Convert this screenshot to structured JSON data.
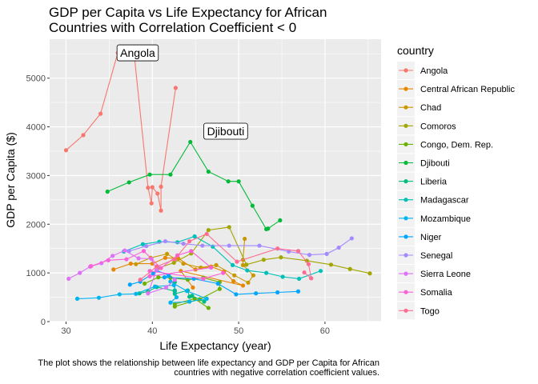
{
  "chart_data": {
    "type": "line",
    "title": [
      "GDP per Capita vs Life Expectancy for African",
      "Countries with Correlation Coefficient < 0"
    ],
    "xlabel": "Life Expectancy (year)",
    "ylabel": "GDP per Capita ($)",
    "caption": [
      "The plot shows the relationship between life expectancy and GDP per Capita for African",
      "countries with negative correlation coefficient values."
    ],
    "xlim": [
      28.1,
      66.5
    ],
    "ylim": [
      0,
      5800
    ],
    "xticks": [
      30,
      40,
      50,
      60
    ],
    "yticks": [
      0,
      1000,
      2000,
      3000,
      4000,
      5000
    ],
    "grid": true,
    "legend": {
      "title": "country",
      "position": "right"
    },
    "annotations": [
      {
        "text": "Angola",
        "x": 38.3,
        "y": 5520
      },
      {
        "text": "Djibouti",
        "x": 48.5,
        "y": 3910
      }
    ],
    "series": [
      {
        "name": "Angola",
        "color": "#F8766D",
        "x": [
          30.0,
          32.0,
          34.0,
          36.0,
          37.9,
          39.5,
          39.9,
          40.0,
          40.6,
          41.0,
          41.0,
          42.7
        ],
        "y": [
          3520,
          3830,
          4270,
          5520,
          5470,
          2750,
          2430,
          2760,
          2630,
          2280,
          2770,
          4800
        ]
      },
      {
        "name": "Central African Republic",
        "color": "#E58700",
        "x": [
          35.5,
          37.5,
          40.0,
          41.5,
          43.0,
          45.0,
          46.8,
          48.3,
          49.4,
          50.5,
          43.3,
          44.7
        ],
        "y": [
          1070,
          1190,
          1190,
          1310,
          1300,
          1070,
          1130,
          1030,
          830,
          740,
          1040,
          700
        ]
      },
      {
        "name": "Chad",
        "color": "#C99800",
        "x": [
          38.1,
          39.8,
          41.7,
          43.6,
          45.6,
          47.4,
          49.5,
          51.1,
          51.7,
          50.5,
          50.5,
          50.7
        ],
        "y": [
          1180,
          1310,
          1390,
          1190,
          1110,
          1160,
          950,
          800,
          950,
          1160,
          1270,
          1700
        ]
      },
      {
        "name": "Comoros",
        "color": "#A3A500",
        "x": [
          40.7,
          42.5,
          44.5,
          46.5,
          48.9,
          50.9,
          52.9,
          54.9,
          57.9,
          60.7,
          62.9,
          65.2
        ],
        "y": [
          1100,
          1210,
          1400,
          1880,
          1940,
          1170,
          1270,
          1320,
          1250,
          1170,
          1080,
          990
        ]
      },
      {
        "name": "Congo, Dem. Rep.",
        "color": "#6BB100",
        "x": [
          39.1,
          40.7,
          42.1,
          44.1,
          45.9,
          47.8,
          47.8,
          45.5,
          42.6,
          42.6,
          44.9,
          46.5
        ],
        "y": [
          780,
          910,
          900,
          860,
          900,
          810,
          670,
          460,
          310,
          360,
          470,
          280
        ]
      },
      {
        "name": "Djibouti",
        "color": "#00BA38",
        "x": [
          34.8,
          37.3,
          39.7,
          42.1,
          44.4,
          46.5,
          48.8,
          50.0,
          51.6,
          53.2,
          53.4,
          54.8
        ],
        "y": [
          2670,
          2860,
          3020,
          3020,
          3690,
          3080,
          2880,
          2880,
          2380,
          1900,
          1910,
          2080
        ]
      },
      {
        "name": "Liberia",
        "color": "#00BF7D",
        "x": [
          38.5,
          39.5,
          40.5,
          42.6,
          42.6,
          42.6,
          42.6,
          42.6,
          44.1,
          44.3,
          44.6,
          46.0
        ],
        "y": [
          580,
          620,
          710,
          630,
          810,
          640,
          620,
          570,
          640,
          510,
          530,
          410
        ]
      },
      {
        "name": "Madagascar",
        "color": "#00C0B8",
        "x": [
          36.7,
          38.9,
          40.8,
          42.9,
          44.9,
          47.0,
          49.3,
          51.0,
          53.2,
          55.1,
          57.0,
          59.5
        ],
        "y": [
          1440,
          1590,
          1640,
          1630,
          1750,
          1540,
          1160,
          1050,
          1000,
          920,
          880,
          1040
        ]
      },
      {
        "name": "Mozambique",
        "color": "#00B4EF",
        "x": [
          31.3,
          33.8,
          36.2,
          38.1,
          40.3,
          42.5,
          42.8,
          42.1,
          44.3,
          46.3,
          44.0,
          42.1
        ],
        "y": [
          470,
          490,
          560,
          570,
          720,
          750,
          500,
          390,
          410,
          470,
          630,
          820
        ]
      },
      {
        "name": "Niger",
        "color": "#00A5FF",
        "x": [
          37.4,
          38.6,
          40.1,
          40.5,
          41.9,
          41.4,
          44.8,
          47.6,
          49.7,
          52.0,
          54.5,
          56.9
        ],
        "y": [
          760,
          820,
          990,
          1050,
          950,
          910,
          880,
          780,
          560,
          580,
          600,
          620
        ]
      },
      {
        "name": "Senegal",
        "color": "#A58AFF",
        "x": [
          37.3,
          39.3,
          41.5,
          43.6,
          45.8,
          48.9,
          52.4,
          55.8,
          58.2,
          60.2,
          61.6,
          63.1
        ],
        "y": [
          1450,
          1550,
          1650,
          1600,
          1560,
          1560,
          1560,
          1440,
          1370,
          1390,
          1520,
          1710
        ]
      },
      {
        "name": "Sierra Leone",
        "color": "#DF70F8",
        "x": [
          30.3,
          31.6,
          32.8,
          34.1,
          35.4,
          36.8,
          38.4,
          39.9,
          40.5,
          39.5,
          41.6,
          42.6
        ],
        "y": [
          880,
          1000,
          1130,
          1200,
          1350,
          1460,
          1300,
          1290,
          1070,
          580,
          700,
          860
        ]
      },
      {
        "name": "Somalia",
        "color": "#FB61D7",
        "x": [
          32.9,
          34.9,
          37.0,
          39.0,
          41.0,
          42.9,
          44.5,
          46.8,
          39.7,
          39.7,
          45.9,
          48.2
        ],
        "y": [
          1140,
          1260,
          1280,
          1450,
          1100,
          1360,
          1450,
          1110,
          930,
          1040,
          880,
          1000
        ]
      },
      {
        "name": "Togo",
        "color": "#FF6C91",
        "x": [
          38.6,
          40.5,
          42.6,
          44.3,
          46.3,
          49.8,
          54.5,
          56.9,
          58.1,
          58.4,
          57.6,
          58.4
        ],
        "y": [
          860,
          1130,
          1280,
          1650,
          1800,
          1230,
          1500,
          1450,
          1180,
          890,
          1010,
          890
        ]
      }
    ]
  }
}
